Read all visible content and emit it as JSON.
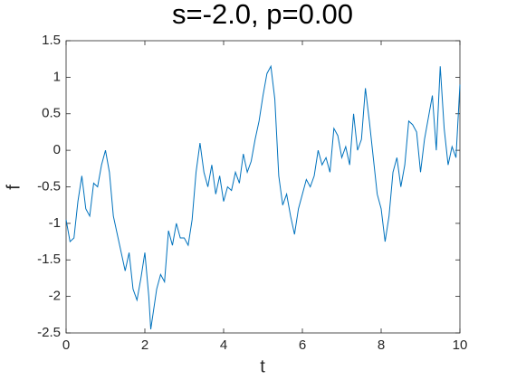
{
  "chart_data": {
    "type": "line",
    "title": "s=-2.0, p=0.00",
    "x_label": "t",
    "y_label": "f",
    "x": [
      0,
      0.1,
      0.2,
      0.3,
      0.4,
      0.5,
      0.6,
      0.7,
      0.8,
      0.9,
      1.0,
      1.1,
      1.2,
      1.3,
      1.4,
      1.5,
      1.6,
      1.7,
      1.8,
      1.9,
      2.0,
      2.1,
      2.15,
      2.3,
      2.4,
      2.5,
      2.6,
      2.7,
      2.8,
      2.9,
      3.0,
      3.1,
      3.2,
      3.3,
      3.4,
      3.5,
      3.6,
      3.7,
      3.8,
      3.9,
      4.0,
      4.1,
      4.2,
      4.3,
      4.4,
      4.5,
      4.6,
      4.7,
      4.8,
      4.9,
      5.0,
      5.1,
      5.2,
      5.3,
      5.4,
      5.5,
      5.6,
      5.7,
      5.8,
      5.9,
      6.0,
      6.1,
      6.2,
      6.3,
      6.4,
      6.5,
      6.6,
      6.7,
      6.8,
      6.9,
      7.0,
      7.1,
      7.2,
      7.3,
      7.4,
      7.5,
      7.6,
      7.7,
      7.8,
      7.9,
      8.0,
      8.1,
      8.2,
      8.3,
      8.4,
      8.5,
      8.6,
      8.7,
      8.8,
      8.9,
      9.0,
      9.1,
      9.2,
      9.3,
      9.4,
      9.5,
      9.6,
      9.7,
      9.8,
      9.9,
      10.0
    ],
    "series": [
      {
        "name": "f",
        "color": "#0072bd",
        "values": [
          -0.95,
          -1.25,
          -1.2,
          -0.7,
          -0.35,
          -0.8,
          -0.9,
          -0.45,
          -0.5,
          -0.2,
          0.0,
          -0.3,
          -0.9,
          -1.15,
          -1.4,
          -1.65,
          -1.4,
          -1.9,
          -2.05,
          -1.75,
          -1.4,
          -2.0,
          -2.45,
          -1.9,
          -1.7,
          -1.8,
          -1.1,
          -1.3,
          -1.0,
          -1.2,
          -1.2,
          -1.3,
          -0.95,
          -0.3,
          0.1,
          -0.3,
          -0.5,
          -0.2,
          -0.6,
          -0.35,
          -0.7,
          -0.5,
          -0.55,
          -0.3,
          -0.45,
          -0.05,
          -0.3,
          -0.15,
          0.15,
          0.4,
          0.75,
          1.05,
          1.15,
          0.7,
          -0.35,
          -0.75,
          -0.6,
          -0.9,
          -1.15,
          -0.8,
          -0.6,
          -0.4,
          -0.5,
          -0.35,
          0.0,
          -0.2,
          -0.1,
          -0.3,
          0.3,
          0.2,
          -0.1,
          0.05,
          -0.2,
          0.5,
          0.0,
          0.15,
          0.85,
          0.4,
          -0.1,
          -0.6,
          -0.8,
          -1.25,
          -0.9,
          -0.3,
          -0.1,
          -0.5,
          -0.2,
          0.4,
          0.35,
          0.25,
          -0.3,
          0.15,
          0.45,
          0.75,
          0.0,
          1.15,
          0.3,
          -0.2,
          0.05,
          -0.1,
          0.9
        ]
      }
    ],
    "xlim": [
      0,
      10
    ],
    "xticks": [
      0,
      2,
      4,
      6,
      8,
      10
    ],
    "ylim": [
      -2.5,
      1.5
    ],
    "yticks": [
      -2.5,
      -2,
      -1.5,
      -1,
      -0.5,
      0,
      0.5,
      1,
      1.5
    ],
    "grid": false
  }
}
